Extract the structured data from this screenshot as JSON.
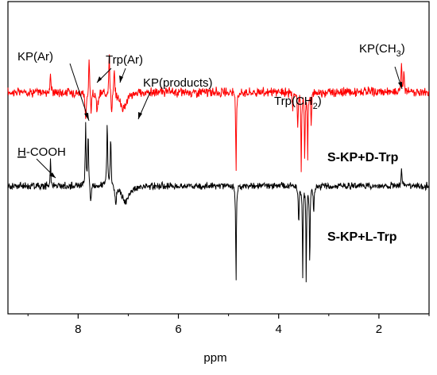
{
  "chart_data": {
    "type": "line",
    "title": "",
    "xlabel": "ppm",
    "ylabel": "",
    "xlim": [
      9.4,
      1.0
    ],
    "x_reversed": true,
    "x_ticks": [
      {
        "value": 8,
        "label": "8"
      },
      {
        "value": 6,
        "label": "6"
      },
      {
        "value": 4,
        "label": "4"
      },
      {
        "value": 2,
        "label": "2"
      }
    ],
    "grid": false,
    "series": [
      {
        "name": "S-KP+D-Trp",
        "color": "#ff0000",
        "baseline_level": 0.71,
        "noise": 0.018,
        "peaks": [
          {
            "ppm": 8.55,
            "height": 0.07,
            "width": 0.008
          },
          {
            "ppm": 7.85,
            "height": -0.09,
            "width": 0.015
          },
          {
            "ppm": 7.78,
            "height": 0.12,
            "width": 0.01
          },
          {
            "ppm": 7.74,
            "height": -0.08,
            "width": 0.01
          },
          {
            "ppm": 7.62,
            "height": -0.06,
            "width": 0.02
          },
          {
            "ppm": 7.38,
            "height": 0.13,
            "width": 0.01
          },
          {
            "ppm": 7.33,
            "height": -0.07,
            "width": 0.01
          },
          {
            "ppm": 7.28,
            "height": 0.08,
            "width": 0.01
          },
          {
            "ppm": 7.1,
            "height": -0.05,
            "width": 0.08
          },
          {
            "ppm": 4.85,
            "height": -0.26,
            "width": 0.008
          },
          {
            "ppm": 3.72,
            "height": -0.06,
            "width": 0.01
          },
          {
            "ppm": 3.62,
            "height": -0.1,
            "width": 0.01
          },
          {
            "ppm": 3.55,
            "height": -0.25,
            "width": 0.008
          },
          {
            "ppm": 3.48,
            "height": -0.22,
            "width": 0.008
          },
          {
            "ppm": 3.42,
            "height": -0.2,
            "width": 0.008
          },
          {
            "ppm": 3.35,
            "height": -0.1,
            "width": 0.01
          },
          {
            "ppm": 1.55,
            "height": 0.09,
            "width": 0.01
          },
          {
            "ppm": 1.5,
            "height": 0.07,
            "width": 0.01
          }
        ]
      },
      {
        "name": "S-KP+L-Trp",
        "color": "#000000",
        "baseline_level": 0.41,
        "noise": 0.014,
        "peaks": [
          {
            "ppm": 8.55,
            "height": 0.09,
            "width": 0.008
          },
          {
            "ppm": 7.85,
            "height": 0.19,
            "width": 0.01
          },
          {
            "ppm": 7.8,
            "height": 0.17,
            "width": 0.01
          },
          {
            "ppm": 7.75,
            "height": -0.05,
            "width": 0.015
          },
          {
            "ppm": 7.42,
            "height": 0.2,
            "width": 0.01
          },
          {
            "ppm": 7.35,
            "height": 0.16,
            "width": 0.01
          },
          {
            "ppm": 7.25,
            "height": -0.05,
            "width": 0.015
          },
          {
            "ppm": 7.05,
            "height": -0.05,
            "width": 0.09
          },
          {
            "ppm": 4.85,
            "height": -0.31,
            "width": 0.008
          },
          {
            "ppm": 3.6,
            "height": -0.12,
            "width": 0.01
          },
          {
            "ppm": 3.52,
            "height": -0.28,
            "width": 0.008
          },
          {
            "ppm": 3.45,
            "height": -0.3,
            "width": 0.008
          },
          {
            "ppm": 3.38,
            "height": -0.26,
            "width": 0.008
          },
          {
            "ppm": 3.3,
            "height": -0.08,
            "width": 0.01
          },
          {
            "ppm": 1.55,
            "height": 0.06,
            "width": 0.01
          }
        ]
      }
    ],
    "series_labels": [
      {
        "text": "S-KP+D-Trp"
      },
      {
        "text": "S-KP+L-Trp"
      }
    ],
    "annotations": [
      {
        "text": "KP(Ar)"
      },
      {
        "text": "Trp(Ar)"
      },
      {
        "text": "KP(products)"
      },
      {
        "text": "Trp(CH",
        "sub": "2",
        "tail": ")"
      },
      {
        "text": "KP(CH",
        "sub": "3",
        "tail": ")"
      },
      {
        "text_underlined": "H",
        "text": "-COOH"
      }
    ]
  }
}
